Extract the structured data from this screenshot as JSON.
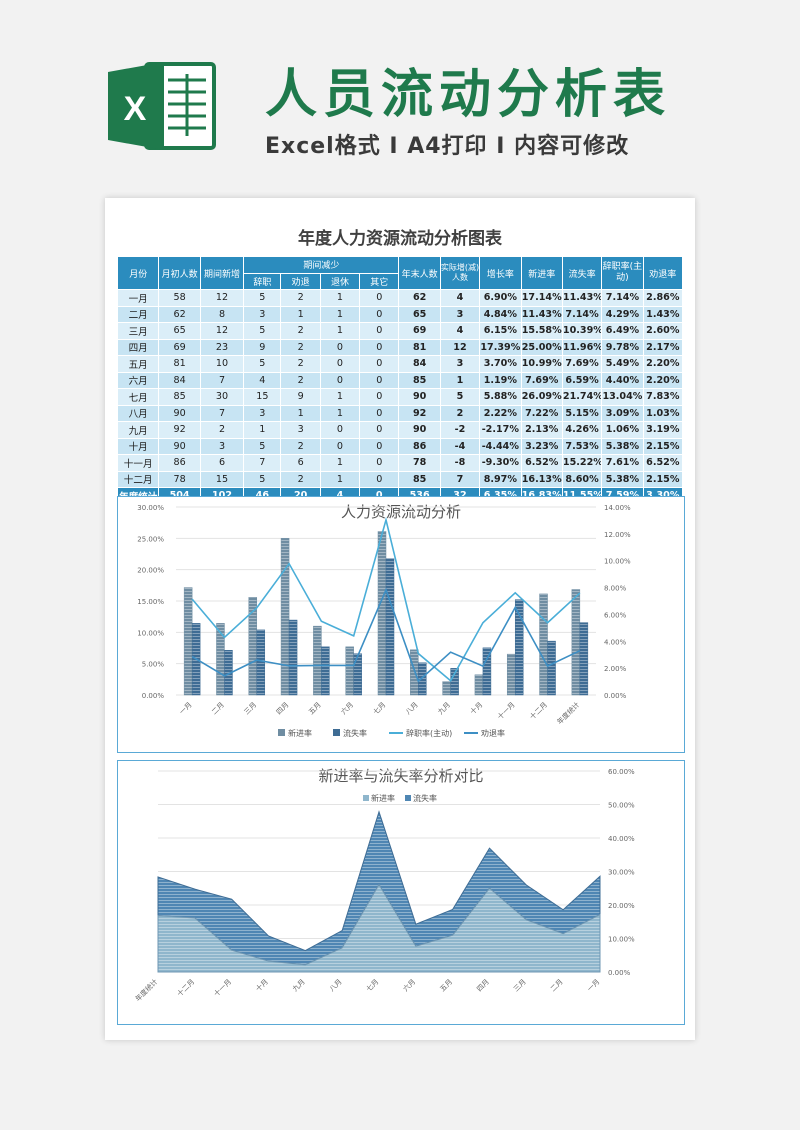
{
  "header": {
    "title": "人员流动分析表",
    "subtitle": "Excel格式 I A4打印 I 内容可修改",
    "logo_letter": "X"
  },
  "sheet": {
    "title": "年度人力资源流动分析图表",
    "headers": {
      "month": "月份",
      "start": "月初人数",
      "new": "期间新增",
      "decrease": "期间减少",
      "resign": "辞职",
      "dismiss": "劝退",
      "retire": "退休",
      "other": "其它",
      "end": "年末人数",
      "actual": "实际增(减) 人数",
      "growth": "增长率",
      "newrate": "新进率",
      "lossrate": "流失率",
      "resignrate": "辞职率(主动)",
      "dismissrate": "劝退率"
    },
    "rows": [
      [
        "一月",
        "58",
        "12",
        "5",
        "2",
        "1",
        "0",
        "62",
        "4",
        "6.90%",
        "17.14%",
        "11.43%",
        "7.14%",
        "2.86%"
      ],
      [
        "二月",
        "62",
        "8",
        "3",
        "1",
        "1",
        "0",
        "65",
        "3",
        "4.84%",
        "11.43%",
        "7.14%",
        "4.29%",
        "1.43%"
      ],
      [
        "三月",
        "65",
        "12",
        "5",
        "2",
        "1",
        "0",
        "69",
        "4",
        "6.15%",
        "15.58%",
        "10.39%",
        "6.49%",
        "2.60%"
      ],
      [
        "四月",
        "69",
        "23",
        "9",
        "2",
        "0",
        "0",
        "81",
        "12",
        "17.39%",
        "25.00%",
        "11.96%",
        "9.78%",
        "2.17%"
      ],
      [
        "五月",
        "81",
        "10",
        "5",
        "2",
        "0",
        "0",
        "84",
        "3",
        "3.70%",
        "10.99%",
        "7.69%",
        "5.49%",
        "2.20%"
      ],
      [
        "六月",
        "84",
        "7",
        "4",
        "2",
        "0",
        "0",
        "85",
        "1",
        "1.19%",
        "7.69%",
        "6.59%",
        "4.40%",
        "2.20%"
      ],
      [
        "七月",
        "85",
        "30",
        "15",
        "9",
        "1",
        "0",
        "90",
        "5",
        "5.88%",
        "26.09%",
        "21.74%",
        "13.04%",
        "7.83%"
      ],
      [
        "八月",
        "90",
        "7",
        "3",
        "1",
        "1",
        "0",
        "92",
        "2",
        "2.22%",
        "7.22%",
        "5.15%",
        "3.09%",
        "1.03%"
      ],
      [
        "九月",
        "92",
        "2",
        "1",
        "3",
        "0",
        "0",
        "90",
        "-2",
        "-2.17%",
        "2.13%",
        "4.26%",
        "1.06%",
        "3.19%"
      ],
      [
        "十月",
        "90",
        "3",
        "5",
        "2",
        "0",
        "0",
        "86",
        "-4",
        "-4.44%",
        "3.23%",
        "7.53%",
        "5.38%",
        "2.15%"
      ],
      [
        "十一月",
        "86",
        "6",
        "7",
        "6",
        "1",
        "0",
        "78",
        "-8",
        "-9.30%",
        "6.52%",
        "15.22%",
        "7.61%",
        "6.52%"
      ],
      [
        "十二月",
        "78",
        "15",
        "5",
        "2",
        "1",
        "0",
        "85",
        "7",
        "8.97%",
        "16.13%",
        "8.60%",
        "5.38%",
        "2.15%"
      ]
    ],
    "total": [
      "年度统计",
      "504",
      "102",
      "46",
      "20",
      "4",
      "0",
      "536",
      "32",
      "6.35%",
      "16.83%",
      "11.55%",
      "7.59%",
      "3.30%"
    ]
  },
  "chart_data": [
    {
      "type": "bar",
      "title": "人力资源流动分析",
      "categories": [
        "一月",
        "二月",
        "三月",
        "四月",
        "五月",
        "六月",
        "七月",
        "八月",
        "九月",
        "十月",
        "十一月",
        "十二月",
        "年度统计"
      ],
      "series": [
        {
          "name": "新进率",
          "kind": "bar",
          "axis": "left",
          "color": "#6f8da2",
          "values": [
            17.14,
            11.43,
            15.58,
            25.0,
            10.99,
            7.69,
            26.09,
            7.22,
            2.13,
            3.23,
            6.52,
            16.13,
            16.83
          ]
        },
        {
          "name": "流失率",
          "kind": "bar",
          "axis": "left",
          "color": "#3e6c94",
          "values": [
            11.43,
            7.14,
            10.39,
            11.96,
            7.69,
            6.59,
            21.74,
            5.15,
            4.26,
            7.53,
            15.22,
            8.6,
            11.55
          ]
        },
        {
          "name": "辞职率(主动)",
          "kind": "line",
          "axis": "right",
          "color": "#4aaed8",
          "values": [
            7.14,
            4.29,
            6.49,
            9.78,
            5.49,
            4.4,
            13.04,
            3.09,
            1.06,
            5.38,
            7.61,
            5.38,
            7.59
          ]
        },
        {
          "name": "劝退率",
          "kind": "line",
          "axis": "right",
          "color": "#3d8fc4",
          "values": [
            2.86,
            1.43,
            2.6,
            2.17,
            2.2,
            2.2,
            7.83,
            1.03,
            3.19,
            2.15,
            6.52,
            2.15,
            3.3
          ]
        }
      ],
      "y_left": {
        "min": 0,
        "max": 30,
        "ticks": [
          "0.00%",
          "5.00%",
          "10.00%",
          "15.00%",
          "20.00%",
          "25.00%",
          "30.00%"
        ]
      },
      "y_right": {
        "min": 0,
        "max": 14,
        "ticks": [
          "0.00%",
          "2.00%",
          "4.00%",
          "6.00%",
          "8.00%",
          "10.00%",
          "12.00%",
          "14.00%"
        ]
      },
      "x_tick_labels": [
        "一月",
        "二月",
        "三月",
        "四月",
        "五月",
        "六月",
        "七月",
        "八月",
        "九月",
        "十月",
        "十一月",
        "十二月",
        "年度统计"
      ],
      "legend": "bottom",
      "grid": true
    },
    {
      "type": "area",
      "title": "新进率与流失率分析对比",
      "stacked": true,
      "categories": [
        "年度统计",
        "十二月",
        "十一月",
        "十月",
        "九月",
        "八月",
        "七月",
        "六月",
        "五月",
        "四月",
        "三月",
        "二月",
        "一月"
      ],
      "x_tick_labels": [
        "年度统计",
        "十二月",
        "十一月",
        "十月",
        "九月",
        "八月",
        "七月",
        "六月",
        "五月",
        "四月",
        "三月",
        "二月",
        "一月"
      ],
      "series": [
        {
          "name": "新进率",
          "color": "#8fb6cc",
          "values": [
            16.83,
            16.13,
            6.52,
            3.23,
            2.13,
            7.22,
            26.09,
            7.69,
            10.99,
            25.0,
            15.58,
            11.43,
            17.14
          ]
        },
        {
          "name": "流失率",
          "color": "#4f86b3",
          "values": [
            11.55,
            8.6,
            15.22,
            7.53,
            4.26,
            5.15,
            21.74,
            6.59,
            7.69,
            11.96,
            10.39,
            7.14,
            11.43
          ]
        }
      ],
      "y_right": {
        "min": 0,
        "max": 60,
        "ticks": [
          "0.00%",
          "10.00%",
          "20.00%",
          "30.00%",
          "40.00%",
          "50.00%",
          "60.00%"
        ]
      },
      "legend": "top",
      "grid": true
    }
  ]
}
